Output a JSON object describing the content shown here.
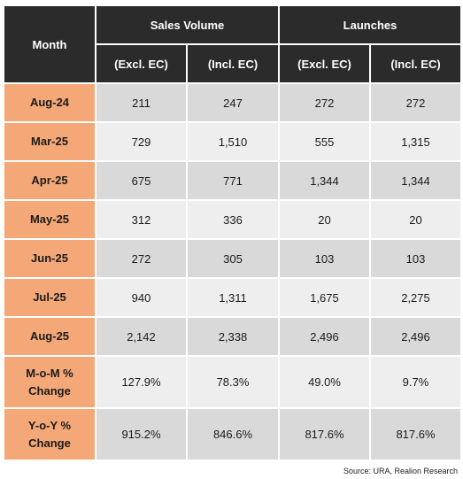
{
  "header": {
    "month": "Month",
    "group_sales": "Sales Volume",
    "group_launches": "Launches",
    "excl": "(Excl. EC)",
    "incl": "(Incl. EC)"
  },
  "rows": [
    {
      "month": "Aug-24",
      "sales_excl": "211",
      "sales_incl": "247",
      "launch_excl": "272",
      "launch_incl": "272"
    },
    {
      "month": "Mar-25",
      "sales_excl": "729",
      "sales_incl": "1,510",
      "launch_excl": "555",
      "launch_incl": "1,315"
    },
    {
      "month": "Apr-25",
      "sales_excl": "675",
      "sales_incl": "771",
      "launch_excl": "1,344",
      "launch_incl": "1,344"
    },
    {
      "month": "May-25",
      "sales_excl": "312",
      "sales_incl": "336",
      "launch_excl": "20",
      "launch_incl": "20"
    },
    {
      "month": "Jun-25",
      "sales_excl": "272",
      "sales_incl": "305",
      "launch_excl": "103",
      "launch_incl": "103"
    },
    {
      "month": "Jul-25",
      "sales_excl": "940",
      "sales_incl": "1,311",
      "launch_excl": "1,675",
      "launch_incl": "2,275"
    },
    {
      "month": "Aug-25",
      "sales_excl": "2,142",
      "sales_incl": "2,338",
      "launch_excl": "2,496",
      "launch_incl": "2,496"
    }
  ],
  "mom": {
    "label_line1": "M-o-M %",
    "label_line2": "Change",
    "sales_excl": "127.9%",
    "sales_incl": "78.3%",
    "launch_excl": "49.0%",
    "launch_incl": "9.7%"
  },
  "yoy": {
    "label_line1": "Y-o-Y %",
    "label_line2": "Change",
    "sales_excl": "915.2%",
    "sales_incl": "846.6%",
    "launch_excl": "817.6%",
    "launch_incl": "817.6%"
  },
  "source": "Source: URA, Realion Research",
  "colors": {
    "header_bg": "#2b2b2b",
    "month_bg": "#f4a878",
    "row_shade_dark": "#d9d9d9",
    "row_shade_light": "#eeeeee"
  }
}
